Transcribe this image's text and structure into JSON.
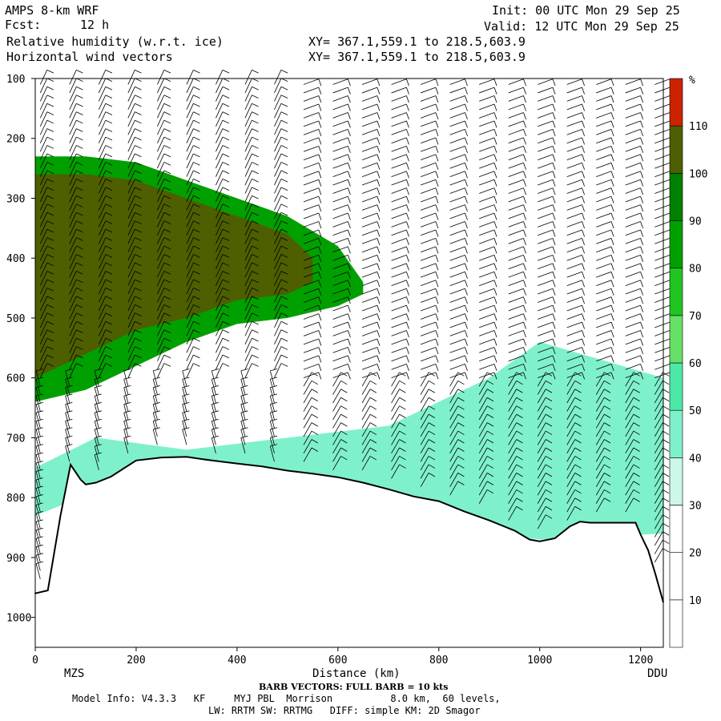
{
  "header": {
    "model": "AMPS 8-km WRF",
    "fcst_label": "Fcst:",
    "fcst_value": "12 h",
    "field1": "Relative humidity (w.r.t. ice)",
    "field2": "Horizontal wind vectors",
    "init": "Init: 00 UTC Mon 29 Sep 25",
    "valid": "Valid: 12 UTC Mon 29 Sep 25",
    "xy1": "XY= 367.1,559.1 to 218.5,603.9",
    "xy2": "XY= 367.1,559.1 to 218.5,603.9"
  },
  "footer": {
    "barb_note": "BARB VECTORS: FULL BARB = 10 kts",
    "model_info": "Model Info: V4.3.3   KF     MYJ PBL  Morrison          8.0 km,  60 levels,",
    "physics": "LW: RRTM SW: RRTMG   DIFF: simple KM: 2D Smagor"
  },
  "chart_data": {
    "type": "heatmap",
    "title": "Relative humidity (w.r.t. ice)",
    "xlabel": "Distance (km)",
    "ylabel": "",
    "x_ticks": [
      0,
      200,
      400,
      600,
      800,
      1000,
      1200
    ],
    "y_ticks": [
      100,
      200,
      300,
      400,
      500,
      600,
      700,
      800,
      900,
      1000
    ],
    "xlim": [
      0,
      1245
    ],
    "ylim": [
      1050,
      100
    ],
    "endpoints": {
      "left": "MZS",
      "right": "DDU"
    },
    "colorbar": {
      "unit": "%",
      "levels": [
        10,
        20,
        30,
        40,
        50,
        60,
        70,
        80,
        90,
        100,
        110
      ],
      "colors": [
        "#ffffff",
        "#ffffff",
        "#ffffff",
        "#ccf8e8",
        "#7ff0cc",
        "#4de8a8",
        "#66e066",
        "#22c422",
        "#00a000",
        "#007f00",
        "#4d5f00",
        "#cc2200"
      ]
    },
    "terrain": {
      "x": [
        0,
        10,
        25,
        50,
        70,
        90,
        100,
        120,
        150,
        200,
        250,
        300,
        350,
        400,
        450,
        500,
        550,
        600,
        650,
        700,
        750,
        800,
        850,
        900,
        950,
        980,
        1000,
        1030,
        1060,
        1080,
        1100,
        1150,
        1190,
        1200,
        1215,
        1230,
        1245
      ],
      "p": [
        960,
        958,
        955,
        830,
        745,
        770,
        778,
        775,
        765,
        738,
        733,
        732,
        738,
        743,
        748,
        755,
        760,
        766,
        775,
        786,
        798,
        806,
        823,
        838,
        855,
        870,
        873,
        868,
        848,
        840,
        842,
        842,
        842,
        862,
        888,
        930,
        975
      ]
    },
    "rh_regions": [
      {
        "level": 40,
        "x": [
          0,
          120,
          300,
          500,
          700,
          900,
          1000,
          1245
        ],
        "p_top": [
          750,
          700,
          720,
          700,
          680,
          600,
          540,
          600
        ],
        "p_bottom": [
          830,
          790,
          760,
          780,
          820,
          860,
          870,
          860
        ]
      },
      {
        "level": 80,
        "x": [
          0,
          100,
          200,
          300,
          400,
          500,
          600,
          650
        ],
        "p_top": [
          230,
          230,
          240,
          270,
          300,
          330,
          380,
          440
        ],
        "p_bottom": [
          640,
          620,
          580,
          540,
          510,
          500,
          480,
          460
        ]
      },
      {
        "level": 100,
        "x": [
          0,
          100,
          200,
          300,
          400,
          500,
          550
        ],
        "p_top": [
          260,
          260,
          270,
          300,
          330,
          360,
          400
        ],
        "p_bottom": [
          600,
          560,
          520,
          500,
          470,
          460,
          440
        ]
      }
    ],
    "wind_barb_note": "FULL BARB = 10 kts",
    "grid": false,
    "legend": "right colorbar"
  }
}
